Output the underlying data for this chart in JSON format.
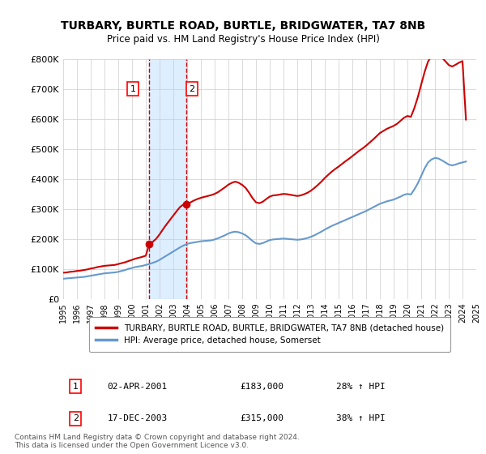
{
  "title": "TURBARY, BURTLE ROAD, BURTLE, BRIDGWATER, TA7 8NB",
  "subtitle": "Price paid vs. HM Land Registry's House Price Index (HPI)",
  "ylabel": "",
  "ylim": [
    0,
    800000
  ],
  "yticks": [
    0,
    100000,
    200000,
    300000,
    400000,
    500000,
    600000,
    700000,
    800000
  ],
  "ytick_labels": [
    "£0",
    "£100K",
    "£200K",
    "£300K",
    "£400K",
    "£500K",
    "£600K",
    "£700K",
    "£800K"
  ],
  "sale1_date": 2001.25,
  "sale1_price": 183000,
  "sale1_label": "1",
  "sale2_date": 2003.96,
  "sale2_price": 315000,
  "sale2_label": "2",
  "property_color": "#cc0000",
  "hpi_color": "#6699cc",
  "highlight_color": "#ddeeff",
  "vline_color": "#cc0000",
  "grid_color": "#cccccc",
  "bg_color": "#ffffff",
  "legend_property": "TURBARY, BURTLE ROAD, BURTLE, BRIDGWATER, TA7 8NB (detached house)",
  "legend_hpi": "HPI: Average price, detached house, Somerset",
  "table_row1": [
    "1",
    "02-APR-2001",
    "£183,000",
    "28% ↑ HPI"
  ],
  "table_row2": [
    "2",
    "17-DEC-2003",
    "£315,000",
    "38% ↑ HPI"
  ],
  "footnote": "Contains HM Land Registry data © Crown copyright and database right 2024.\nThis data is licensed under the Open Government Licence v3.0.",
  "hpi_data_x": [
    1995,
    1995.25,
    1995.5,
    1995.75,
    1996,
    1996.25,
    1996.5,
    1996.75,
    1997,
    1997.25,
    1997.5,
    1997.75,
    1998,
    1998.25,
    1998.5,
    1998.75,
    1999,
    1999.25,
    1999.5,
    1999.75,
    2000,
    2000.25,
    2000.5,
    2000.75,
    2001,
    2001.25,
    2001.5,
    2001.75,
    2002,
    2002.25,
    2002.5,
    2002.75,
    2003,
    2003.25,
    2003.5,
    2003.75,
    2004,
    2004.25,
    2004.5,
    2004.75,
    2005,
    2005.25,
    2005.5,
    2005.75,
    2006,
    2006.25,
    2006.5,
    2006.75,
    2007,
    2007.25,
    2007.5,
    2007.75,
    2008,
    2008.25,
    2008.5,
    2008.75,
    2009,
    2009.25,
    2009.5,
    2009.75,
    2010,
    2010.25,
    2010.5,
    2010.75,
    2011,
    2011.25,
    2011.5,
    2011.75,
    2012,
    2012.25,
    2012.5,
    2012.75,
    2013,
    2013.25,
    2013.5,
    2013.75,
    2014,
    2014.25,
    2014.5,
    2014.75,
    2015,
    2015.25,
    2015.5,
    2015.75,
    2016,
    2016.25,
    2016.5,
    2016.75,
    2017,
    2017.25,
    2017.5,
    2017.75,
    2018,
    2018.25,
    2018.5,
    2018.75,
    2019,
    2019.25,
    2019.5,
    2019.75,
    2020,
    2020.25,
    2020.5,
    2020.75,
    2021,
    2021.25,
    2021.5,
    2021.75,
    2022,
    2022.25,
    2022.5,
    2022.75,
    2023,
    2023.25,
    2023.5,
    2023.75,
    2024,
    2024.25
  ],
  "hpi_data_y": [
    67000,
    68000,
    69000,
    70000,
    71000,
    72000,
    73000,
    75000,
    77000,
    79000,
    81000,
    83000,
    85000,
    86000,
    87000,
    88000,
    90000,
    93000,
    96000,
    100000,
    103000,
    106000,
    108000,
    110000,
    113000,
    116000,
    120000,
    124000,
    130000,
    137000,
    144000,
    151000,
    158000,
    165000,
    172000,
    178000,
    183000,
    186000,
    188000,
    190000,
    192000,
    193000,
    194000,
    195000,
    198000,
    202000,
    207000,
    212000,
    218000,
    222000,
    224000,
    222000,
    218000,
    212000,
    203000,
    193000,
    185000,
    183000,
    186000,
    191000,
    196000,
    198000,
    199000,
    200000,
    201000,
    200000,
    199000,
    198000,
    197000,
    198000,
    200000,
    203000,
    207000,
    212000,
    218000,
    224000,
    231000,
    237000,
    243000,
    248000,
    253000,
    258000,
    263000,
    268000,
    273000,
    278000,
    283000,
    288000,
    293000,
    299000,
    305000,
    311000,
    317000,
    321000,
    325000,
    328000,
    331000,
    336000,
    341000,
    347000,
    350000,
    348000,
    365000,
    385000,
    410000,
    435000,
    455000,
    465000,
    470000,
    468000,
    462000,
    455000,
    448000,
    445000,
    448000,
    452000,
    455000,
    458000
  ],
  "property_data_x": [
    1995,
    1995.25,
    1995.5,
    1995.75,
    1996,
    1996.25,
    1996.5,
    1996.75,
    1997,
    1997.25,
    1997.5,
    1997.75,
    1998,
    1998.25,
    1998.5,
    1998.75,
    1999,
    1999.25,
    1999.5,
    1999.75,
    2000,
    2000.25,
    2000.5,
    2000.75,
    2001,
    2001.25,
    2001.5,
    2001.75,
    2002,
    2002.25,
    2002.5,
    2002.75,
    2003,
    2003.25,
    2003.5,
    2003.75,
    2004,
    2004.25,
    2004.5,
    2004.75,
    2005,
    2005.25,
    2005.5,
    2005.75,
    2006,
    2006.25,
    2006.5,
    2006.75,
    2007,
    2007.25,
    2007.5,
    2007.75,
    2008,
    2008.25,
    2008.5,
    2008.75,
    2009,
    2009.25,
    2009.5,
    2009.75,
    2010,
    2010.25,
    2010.5,
    2010.75,
    2011,
    2011.25,
    2011.5,
    2011.75,
    2012,
    2012.25,
    2012.5,
    2012.75,
    2013,
    2013.25,
    2013.5,
    2013.75,
    2014,
    2014.25,
    2014.5,
    2014.75,
    2015,
    2015.25,
    2015.5,
    2015.75,
    2016,
    2016.25,
    2016.5,
    2016.75,
    2017,
    2017.25,
    2017.5,
    2017.75,
    2018,
    2018.25,
    2018.5,
    2018.75,
    2019,
    2019.25,
    2019.5,
    2019.75,
    2020,
    2020.25,
    2020.5,
    2020.75,
    2021,
    2021.25,
    2021.5,
    2021.75,
    2022,
    2022.25,
    2022.5,
    2022.75,
    2023,
    2023.25,
    2023.5,
    2023.75,
    2024,
    2024.25
  ],
  "property_data_y": [
    87000,
    88000,
    90000,
    91000,
    93000,
    94000,
    96000,
    98000,
    101000,
    103000,
    106000,
    108000,
    110000,
    111000,
    112000,
    113000,
    116000,
    119000,
    122000,
    126000,
    130000,
    134000,
    137000,
    140000,
    144000,
    183000,
    190000,
    200000,
    215000,
    232000,
    248000,
    263000,
    278000,
    293000,
    307000,
    315000,
    315000,
    322000,
    328000,
    333000,
    337000,
    340000,
    343000,
    346000,
    350000,
    356000,
    364000,
    372000,
    381000,
    387000,
    391000,
    387000,
    380000,
    370000,
    354000,
    336000,
    322000,
    319000,
    324000,
    333000,
    341000,
    345000,
    346000,
    348000,
    350000,
    349000,
    347000,
    345000,
    343000,
    345000,
    349000,
    354000,
    361000,
    370000,
    380000,
    391000,
    403000,
    414000,
    424000,
    433000,
    441000,
    450000,
    459000,
    467000,
    476000,
    485000,
    494000,
    502000,
    511000,
    521000,
    531000,
    542000,
    553000,
    560000,
    567000,
    572000,
    577000,
    584000,
    594000,
    604000,
    610000,
    607000,
    636000,
    672000,
    715000,
    757000,
    792000,
    810000,
    818000,
    815000,
    805000,
    793000,
    780000,
    775000,
    781000,
    788000,
    793000,
    598000
  ],
  "xlim_min": 1995,
  "xlim_max": 2025,
  "xtick_years": [
    1995,
    1996,
    1997,
    1998,
    1999,
    2000,
    2001,
    2002,
    2003,
    2004,
    2005,
    2006,
    2007,
    2008,
    2009,
    2010,
    2011,
    2012,
    2013,
    2014,
    2015,
    2016,
    2017,
    2018,
    2019,
    2020,
    2021,
    2022,
    2023,
    2024,
    2025
  ]
}
